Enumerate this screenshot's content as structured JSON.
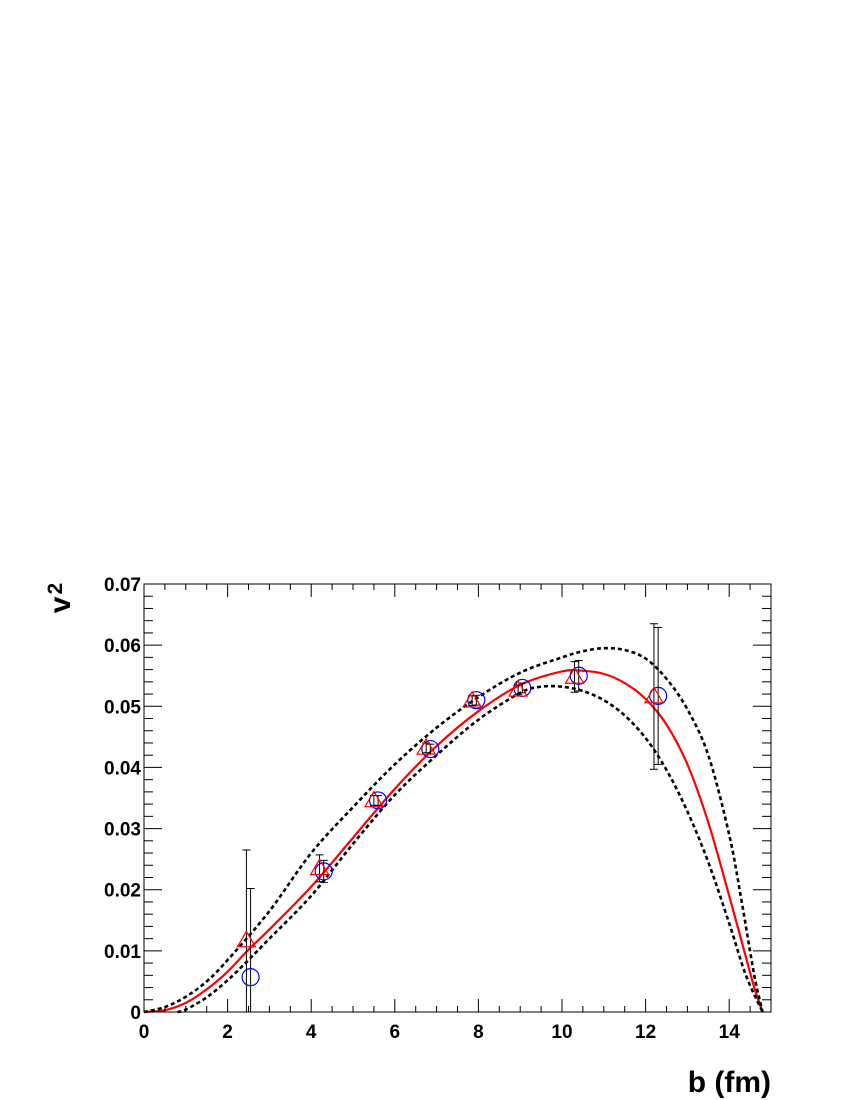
{
  "chart_data": {
    "type": "scatter",
    "xlabel": "b (fm)",
    "ylabel": "v",
    "ylabel_subscript": "2",
    "xlim": [
      0,
      15
    ],
    "ylim": [
      0,
      0.07
    ],
    "x_ticks": [
      0,
      2,
      4,
      6,
      8,
      10,
      12,
      14
    ],
    "y_ticks": [
      0,
      0.01,
      0.02,
      0.03,
      0.04,
      0.05,
      0.06,
      0.07
    ],
    "x_tick_labels": [
      "0",
      "2",
      "4",
      "6",
      "8",
      "10",
      "12",
      "14"
    ],
    "y_tick_labels": [
      "0",
      "0.01",
      "0.02",
      "0.03",
      "0.04",
      "0.05",
      "0.06",
      "0.07"
    ],
    "grid": false,
    "series": [
      {
        "marker": "circle",
        "color": "#0000ff",
        "x": [
          2.55,
          4.3,
          5.6,
          6.85,
          7.95,
          9.05,
          10.4,
          12.3
        ],
        "y": [
          0.0057,
          0.023,
          0.0346,
          0.043,
          0.051,
          0.053,
          0.055,
          0.0517
        ],
        "err": [
          0.0145,
          0.0018,
          0.0008,
          0.0008,
          0.0008,
          0.0008,
          0.0025,
          0.0112
        ]
      },
      {
        "marker": "triangle",
        "color": "#ff0000",
        "x": [
          2.45,
          4.2,
          5.5,
          6.75,
          7.85,
          8.95,
          10.3,
          12.2
        ],
        "y": [
          0.0117,
          0.0235,
          0.0346,
          0.0432,
          0.0509,
          0.0527,
          0.0548,
          0.0516
        ],
        "err": [
          0.0148,
          0.0022,
          0.0008,
          0.0008,
          0.0008,
          0.0008,
          0.0025,
          0.0119
        ]
      }
    ],
    "curves": [
      {
        "style": "solid",
        "color": "#ff0000",
        "x": [
          0,
          0.5,
          1,
          1.5,
          2,
          2.5,
          3,
          4,
          5,
          6,
          7,
          8,
          9,
          10,
          10.5,
          11,
          11.5,
          12,
          12.5,
          13,
          13.5,
          14,
          14.3,
          14.6,
          14.8
        ],
        "y": [
          0,
          0.0003,
          0.0015,
          0.0037,
          0.0066,
          0.0102,
          0.0135,
          0.0205,
          0.0285,
          0.0365,
          0.0435,
          0.0492,
          0.0535,
          0.0557,
          0.0558,
          0.0553,
          0.0538,
          0.0512,
          0.047,
          0.0405,
          0.031,
          0.019,
          0.0115,
          0.004,
          0
        ]
      },
      {
        "style": "dashed",
        "color": "#000000",
        "x": [
          0,
          0.5,
          1,
          1.5,
          2,
          3,
          4,
          5,
          6,
          7,
          8,
          9,
          10,
          10.5,
          11,
          11.5,
          12,
          12.5,
          13,
          13.5,
          14,
          14.3,
          14.6,
          14.8
        ],
        "y": [
          0,
          0.0008,
          0.0025,
          0.005,
          0.0085,
          0.0165,
          0.026,
          0.0335,
          0.0405,
          0.0465,
          0.0515,
          0.0555,
          0.058,
          0.059,
          0.0595,
          0.0592,
          0.0578,
          0.0545,
          0.0495,
          0.042,
          0.029,
          0.018,
          0.006,
          0
        ]
      },
      {
        "style": "dashed",
        "color": "#000000",
        "x": [
          0.8,
          1,
          1.5,
          2,
          2.5,
          3,
          4,
          5,
          6,
          7,
          8,
          9,
          9.5,
          10,
          10.5,
          11,
          11.5,
          12,
          12.5,
          13,
          13.5,
          14,
          14.4,
          14.8
        ],
        "y": [
          0,
          0.0004,
          0.0024,
          0.0052,
          0.0085,
          0.012,
          0.019,
          0.0275,
          0.0355,
          0.042,
          0.0478,
          0.0522,
          0.0532,
          0.0532,
          0.0525,
          0.051,
          0.0485,
          0.0448,
          0.0396,
          0.0328,
          0.0245,
          0.0145,
          0.006,
          0
        ]
      }
    ]
  }
}
